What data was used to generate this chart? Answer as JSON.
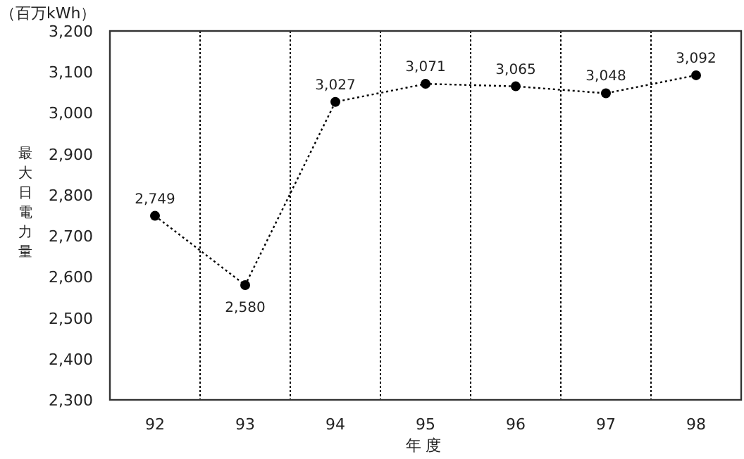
{
  "chart_data": {
    "type": "line",
    "xlabel": "年度",
    "ylabel": "最大日電力量",
    "annotations": [
      "（百万kWh）"
    ],
    "categories": [
      "92",
      "93",
      "94",
      "95",
      "96",
      "97",
      "98"
    ],
    "values": [
      2749,
      2580,
      3027,
      3071,
      3065,
      3048,
      3092
    ],
    "value_labels": [
      "2,749",
      "2,580",
      "3,027",
      "3,071",
      "3,065",
      "3,048",
      "3,092"
    ],
    "color": "#000000",
    "marker": "circle",
    "line_style": "dotted",
    "grid": "x",
    "ylim": [
      2300,
      3200
    ],
    "yticks": [
      {
        "value": 2300,
        "label": "2,300"
      },
      {
        "value": 2400,
        "label": "2,400"
      },
      {
        "value": 2500,
        "label": "2,500"
      },
      {
        "value": 2600,
        "label": "2,600"
      },
      {
        "value": 2700,
        "label": "2,700"
      },
      {
        "value": 2800,
        "label": "2,800"
      },
      {
        "value": 2900,
        "label": "2,900"
      },
      {
        "value": 3000,
        "label": "3,000"
      },
      {
        "value": 3100,
        "label": "3,100"
      },
      {
        "value": 3200,
        "label": "3,200"
      }
    ]
  }
}
